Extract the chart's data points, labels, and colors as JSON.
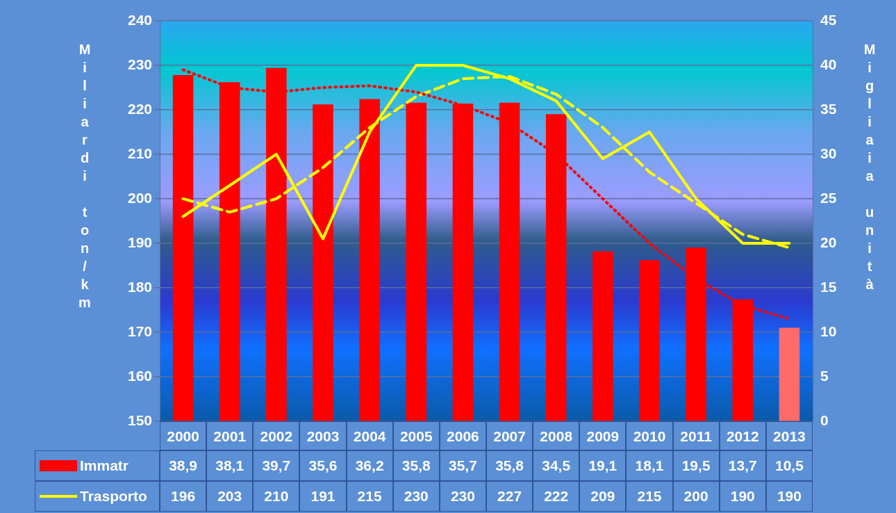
{
  "chart_data": {
    "type": "bar",
    "categories": [
      "2000",
      "2001",
      "2002",
      "2003",
      "2004",
      "2005",
      "2006",
      "2007",
      "2008",
      "2009",
      "2010",
      "2011",
      "2012",
      "2013"
    ],
    "ylabel": "Miliardi ton/km",
    "y2label": "Migliaia unità",
    "ylim": [
      150,
      240
    ],
    "yticks": [
      150,
      160,
      170,
      180,
      190,
      200,
      210,
      220,
      230,
      240
    ],
    "y2lim": [
      0,
      45
    ],
    "y2ticks": [
      0,
      5,
      10,
      15,
      20,
      25,
      30,
      35,
      40,
      45
    ],
    "grid": "y",
    "legend": "bottom",
    "marker": "none",
    "series": [
      {
        "name": "Immatr",
        "axis": "y2",
        "value_labels": [
          "38,9",
          "38,1",
          "39,7",
          "35,6",
          "36,2",
          "35,8",
          "35,7",
          "35,8",
          "34,5",
          "19,1",
          "18,1",
          "19,5",
          "13,7",
          "10,5"
        ],
        "color": "#ff0000",
        "colors": [
          "#ff0000",
          "#ff0000",
          "#ff0000",
          "#ff0000",
          "#ff0000",
          "#ff0000",
          "#ff0000",
          "#ff0000",
          "#ff0000",
          "#ff0000",
          "#ff0000",
          "#ff0000",
          "#ff0000",
          "#ff6b6b"
        ],
        "values": [
          38.9,
          38.1,
          39.7,
          35.6,
          36.2,
          35.8,
          35.7,
          35.8,
          34.5,
          19.1,
          18.1,
          19.5,
          13.7,
          10.5
        ]
      },
      {
        "name": "Trasporto",
        "type": "line",
        "axis": "y",
        "color": "#ffff00",
        "value_labels": [
          "196",
          "203",
          "210",
          "191",
          "215",
          "230",
          "230",
          "227",
          "222",
          "209",
          "215",
          "200",
          "190",
          "190"
        ],
        "values": [
          196,
          203,
          210,
          191,
          215,
          230,
          230,
          227,
          222,
          209,
          215,
          200,
          190,
          190
        ]
      },
      {
        "type": "line",
        "axis": "y2",
        "color": "#ff0000",
        "line_style": "dotted",
        "values": [
          39.5,
          37.5,
          37,
          37.5,
          37.7,
          37,
          35.5,
          33.5,
          30,
          25,
          20,
          16,
          13,
          11.5
        ]
      },
      {
        "type": "line",
        "axis": "y",
        "color": "#ffff00",
        "line_style": "dashed",
        "values": [
          200,
          197,
          200,
          207,
          216,
          223,
          227,
          227.5,
          223.5,
          216,
          206,
          199,
          192,
          189
        ]
      }
    ]
  }
}
